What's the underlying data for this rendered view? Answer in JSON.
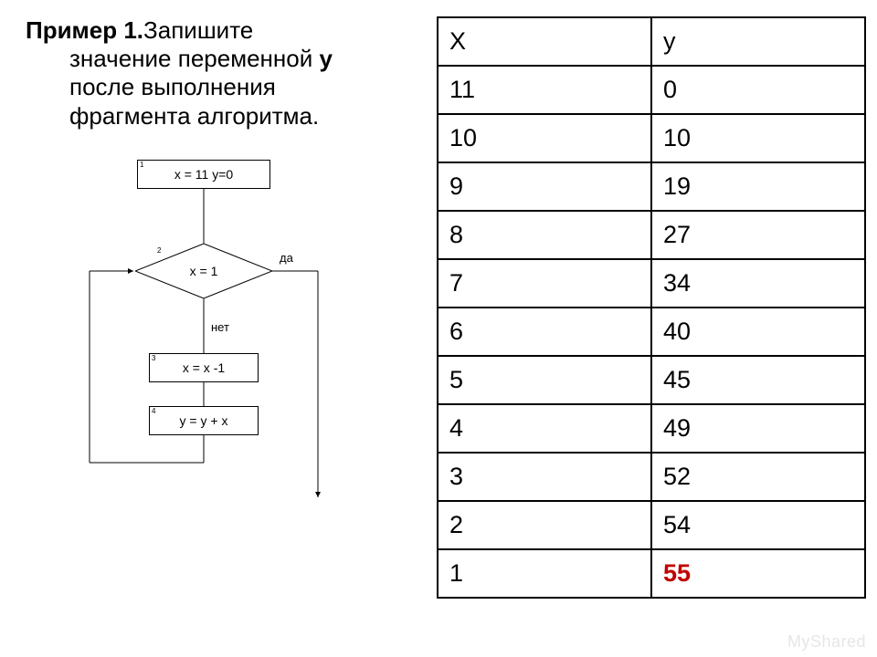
{
  "task": {
    "title_bold": "Пример 1.",
    "title_rest": "Запишите",
    "line2": "значение переменной ",
    "var_bold": "у",
    "line3": "после выполнения",
    "line4": "фрагмента алгоритма."
  },
  "flowchart": {
    "box1_text": "x = 11   y=0",
    "box1_num": "1",
    "decision_text": "x  =  1",
    "decision_num": "2",
    "yes_label": "да",
    "no_label": "нет",
    "box3_text": "x = x -1",
    "box3_num": "3",
    "box4_text": "y = y + x",
    "box4_num": "4",
    "line_color": "#000000",
    "bg_color": "#ffffff"
  },
  "table": {
    "columns": [
      "X",
      "y"
    ],
    "rows": [
      [
        "11",
        "0"
      ],
      [
        "10",
        "10"
      ],
      [
        "9",
        "19"
      ],
      [
        "8",
        "27"
      ],
      [
        "7",
        "34"
      ],
      [
        "6",
        "40"
      ],
      [
        "5",
        "45"
      ],
      [
        "4",
        "49"
      ],
      [
        "3",
        "52"
      ],
      [
        "2",
        "54"
      ],
      [
        "1",
        "55"
      ]
    ],
    "result_cell": {
      "row": 10,
      "col": 1
    },
    "border_color": "#000000",
    "result_color": "#c00000"
  },
  "watermark": "MyShared"
}
